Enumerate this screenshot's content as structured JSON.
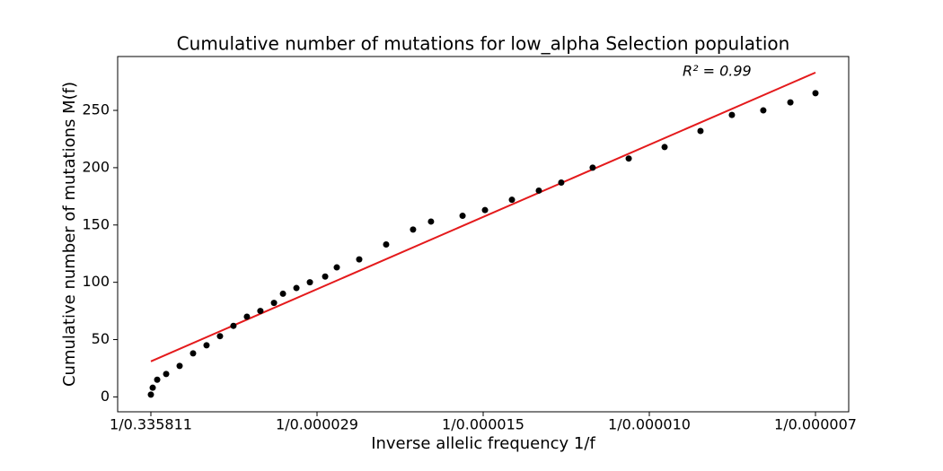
{
  "chart_data": {
    "type": "scatter",
    "title": "Cumulative number of mutations for low_alpha Selection population",
    "xlabel": "Inverse allelic frequency 1/f",
    "ylabel": "Cumulative number of mutations M(f)",
    "annotation": "R² =  0.99",
    "color": "#000000",
    "x": [
      0,
      0.011,
      0.038,
      0.092,
      0.173,
      0.254,
      0.335,
      0.416,
      0.497,
      0.578,
      0.659,
      0.741,
      0.795,
      0.876,
      0.957,
      1.049,
      1.119,
      1.254,
      1.416,
      1.578,
      1.686,
      1.876,
      2.011,
      2.173,
      2.335,
      2.47,
      2.659,
      2.876,
      3.092,
      3.308,
      3.497,
      3.686,
      3.849,
      4.0
    ],
    "values": [
      2,
      8,
      15,
      20,
      27,
      38,
      45,
      53,
      62,
      70,
      75,
      82,
      90,
      95,
      100,
      105,
      113,
      120,
      133,
      146,
      153,
      158,
      163,
      172,
      180,
      187,
      200,
      208,
      218,
      232,
      246,
      250,
      257,
      265
    ],
    "fit": {
      "color": "#e41a1c",
      "x": [
        0,
        4
      ],
      "values": [
        31,
        283
      ]
    },
    "xlim": [
      -0.2,
      4.2
    ],
    "ylim": [
      -13,
      297
    ],
    "xticks": [
      {
        "value": 0,
        "label": "1/0.335811"
      },
      {
        "value": 1,
        "label": "1/0.000029"
      },
      {
        "value": 2,
        "label": "1/0.000015"
      },
      {
        "value": 3,
        "label": "1/0.000010"
      },
      {
        "value": 4,
        "label": "1/0.000007"
      }
    ],
    "yticks": [
      0,
      50,
      100,
      150,
      200,
      250
    ]
  }
}
